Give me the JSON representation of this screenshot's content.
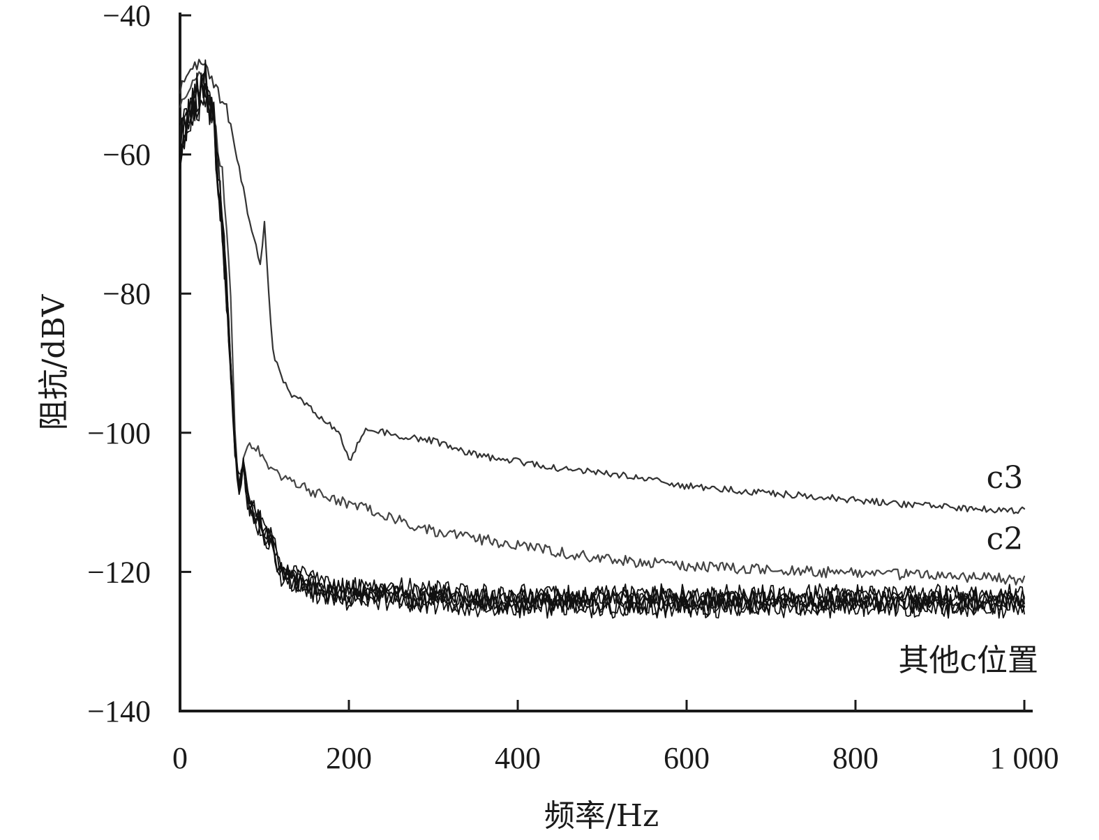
{
  "chart_data": {
    "type": "line",
    "title": "",
    "xlabel": "频率/Hz",
    "ylabel": "阻抗/dBV",
    "xlim": [
      0,
      1000
    ],
    "ylim": [
      -140,
      -40
    ],
    "x_ticks": [
      0,
      200,
      400,
      600,
      800,
      1000
    ],
    "x_tick_labels": [
      "0",
      "200",
      "400",
      "600",
      "800",
      "1 000"
    ],
    "y_ticks": [
      -40,
      -60,
      -80,
      -100,
      -120,
      -140
    ],
    "y_tick_labels": [
      "−40",
      "−60",
      "−80",
      "−100",
      "−120",
      "−140"
    ],
    "grid": false,
    "legend": "none",
    "series": [
      {
        "name": "c3",
        "color": "#333333",
        "x": [
          0,
          10,
          20,
          30,
          40,
          50,
          60,
          70,
          80,
          90,
          95,
          100,
          105,
          110,
          120,
          130,
          150,
          170,
          190,
          200,
          220,
          250,
          300,
          350,
          400,
          450,
          500,
          550,
          600,
          650,
          700,
          750,
          800,
          850,
          900,
          950,
          1000
        ],
        "y": [
          -50,
          -48,
          -47,
          -46,
          -50,
          -52,
          -55,
          -62,
          -68,
          -73,
          -76,
          -69,
          -80,
          -88,
          -92,
          -94,
          -96,
          -98,
          -100,
          -104,
          -99,
          -100,
          -101,
          -103,
          -104,
          -105,
          -105.5,
          -106.5,
          -107.5,
          -108,
          -108.5,
          -109,
          -109.5,
          -110,
          -110.5,
          -110.8,
          -111
        ]
      },
      {
        "name": "c2",
        "color": "#444444",
        "x": [
          0,
          10,
          20,
          30,
          40,
          50,
          60,
          65,
          70,
          75,
          80,
          90,
          100,
          120,
          150,
          200,
          250,
          300,
          350,
          400,
          450,
          500,
          550,
          600,
          650,
          700,
          750,
          800,
          850,
          900,
          950,
          1000
        ],
        "y": [
          -52,
          -50,
          -49,
          -50,
          -55,
          -62,
          -80,
          -100,
          -108,
          -103,
          -101,
          -102,
          -104,
          -106,
          -108,
          -110,
          -112,
          -114,
          -115,
          -116,
          -117,
          -118,
          -118.5,
          -119,
          -119.3,
          -119.6,
          -119.8,
          -120,
          -120.2,
          -120.4,
          -120.6,
          -121
        ]
      },
      {
        "name": "其他c位置",
        "color": "#111111",
        "x": [
          0,
          10,
          20,
          30,
          40,
          50,
          60,
          65,
          70,
          75,
          80,
          90,
          100,
          110,
          120,
          140,
          160,
          200,
          250,
          300,
          350,
          400,
          450,
          500,
          550,
          600,
          650,
          700,
          750,
          800,
          850,
          900,
          950,
          1000
        ],
        "y": [
          -58,
          -55,
          -52,
          -50,
          -55,
          -70,
          -90,
          -102,
          -108,
          -104,
          -110,
          -112,
          -114,
          -116,
          -120,
          -121,
          -122,
          -123,
          -123,
          -123.5,
          -124,
          -124,
          -124,
          -124,
          -124,
          -124,
          -124,
          -124,
          -124,
          -124,
          -124,
          -124,
          -124,
          -124
        ]
      }
    ]
  }
}
